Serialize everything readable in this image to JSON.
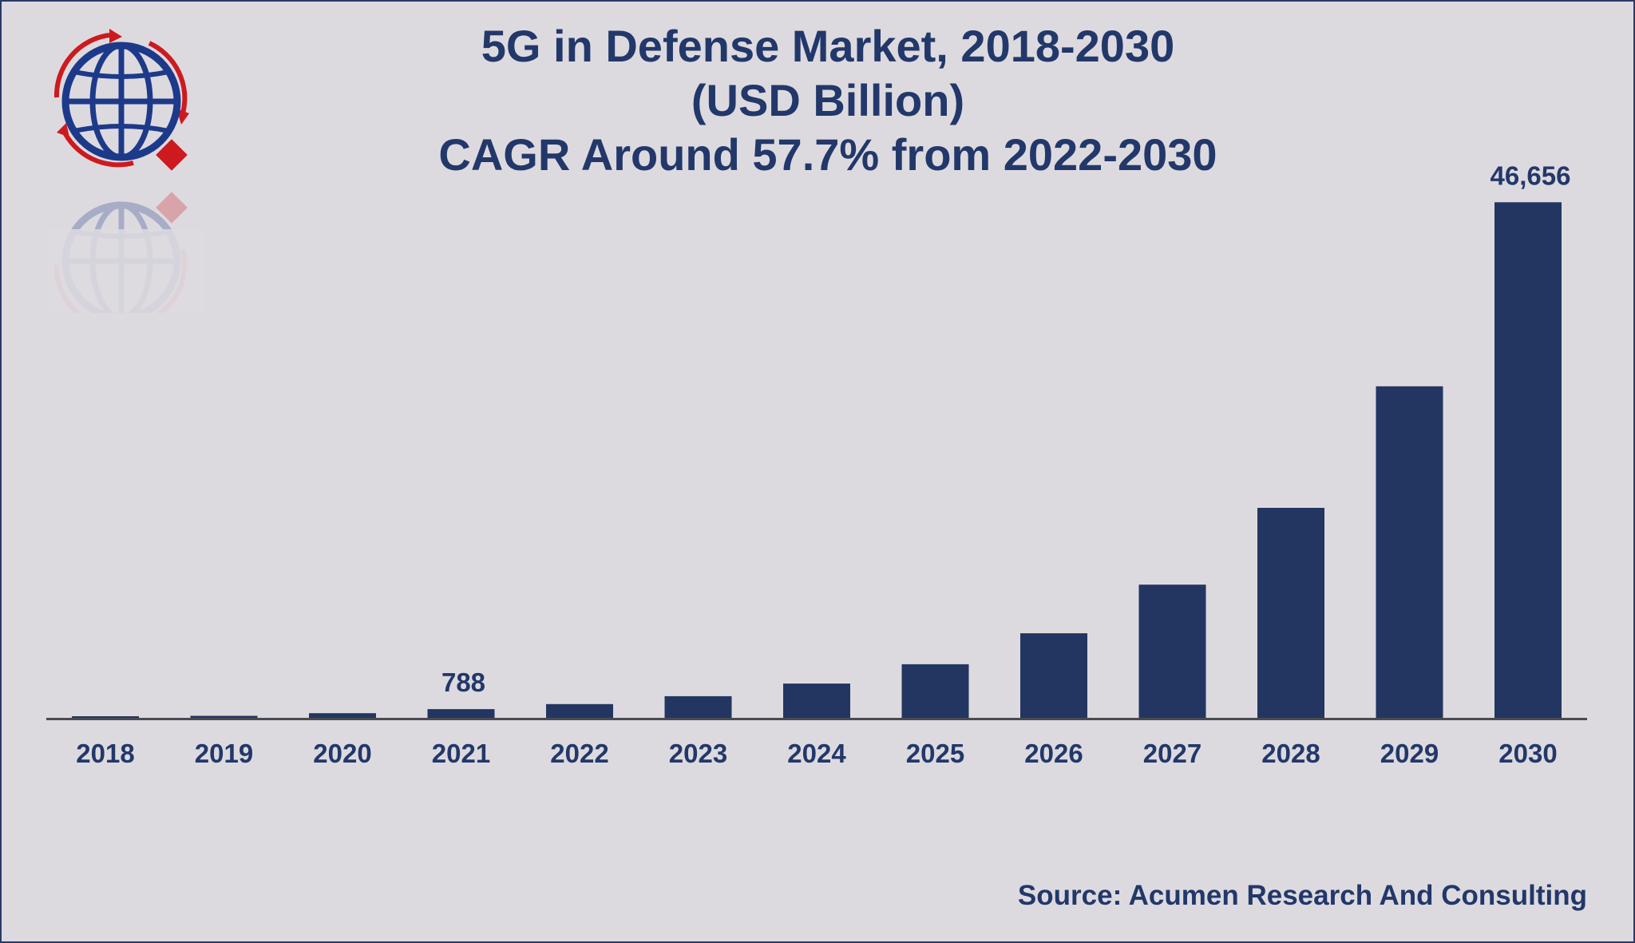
{
  "colors": {
    "bar": "#223661",
    "text": "#22386a",
    "axis": "#4a4a52",
    "logo_blue": "#1d3a8a",
    "logo_red": "#cc1a1f",
    "background": "#dddadf"
  },
  "logo": {
    "icon": "globe-with-arrows-icon"
  },
  "chart_data": {
    "type": "bar",
    "title_lines": [
      "5G in Defense Market, 2018-2030",
      "(USD Billion)",
      "CAGR Around 57.7% from 2022-2030"
    ],
    "categories": [
      "2018",
      "2019",
      "2020",
      "2021",
      "2022",
      "2023",
      "2024",
      "2025",
      "2026",
      "2027",
      "2028",
      "2029",
      "2030"
    ],
    "values": [
      60,
      180,
      420,
      788,
      1240,
      1960,
      3100,
      4850,
      7650,
      12050,
      19000,
      30000,
      46656
    ],
    "data_labels": [
      {
        "index": 3,
        "text": "788"
      },
      {
        "index": 12,
        "text": "46,656"
      }
    ],
    "ylim": [
      0,
      50000
    ],
    "xlabel": "",
    "ylabel": "",
    "grid": false,
    "legend": "none"
  },
  "source": "Source: Acumen Research And Consulting"
}
